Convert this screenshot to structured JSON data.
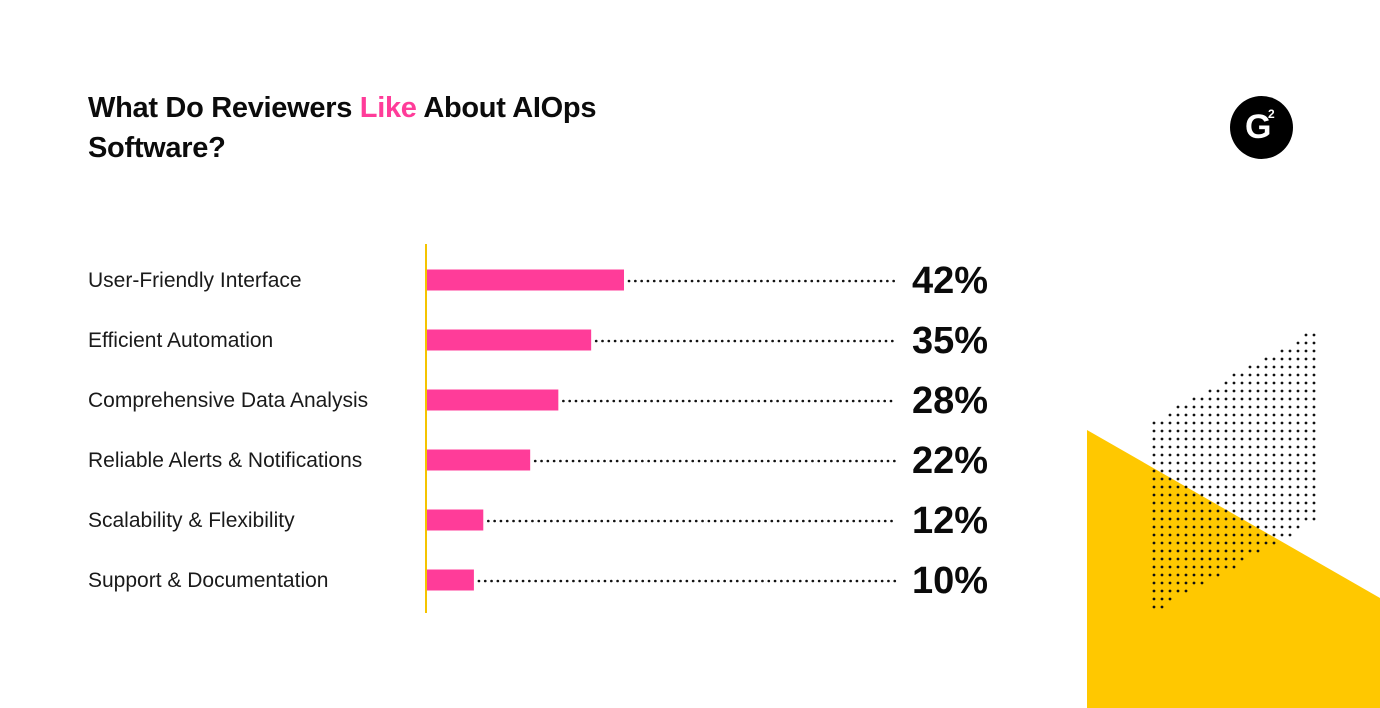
{
  "title": {
    "part1": "What Do Reviewers ",
    "highlight": "Like",
    "part2": " About AIOps Software?"
  },
  "logo": {
    "letter": "G",
    "superscript": "2"
  },
  "colors": {
    "bar": "#ff3c99",
    "axis": "#f5c400",
    "accent_yellow": "#ffc800",
    "highlight": "#ff3c99",
    "text": "#0b0b0b"
  },
  "chart_data": {
    "type": "bar",
    "orientation": "horizontal",
    "categories": [
      "User-Friendly Interface",
      "Efficient Automation",
      "Comprehensive Data Analysis",
      "Reliable Alerts & Notifications",
      "Scalability & Flexibility",
      "Support & Documentation"
    ],
    "values": [
      42,
      35,
      28,
      22,
      12,
      10
    ],
    "value_labels": [
      "42%",
      "35%",
      "28%",
      "22%",
      "12%",
      "10%"
    ],
    "title": "What Do Reviewers Like About AIOps Software?",
    "xlabel": "",
    "ylabel": "",
    "grid": false,
    "legend": "none"
  }
}
